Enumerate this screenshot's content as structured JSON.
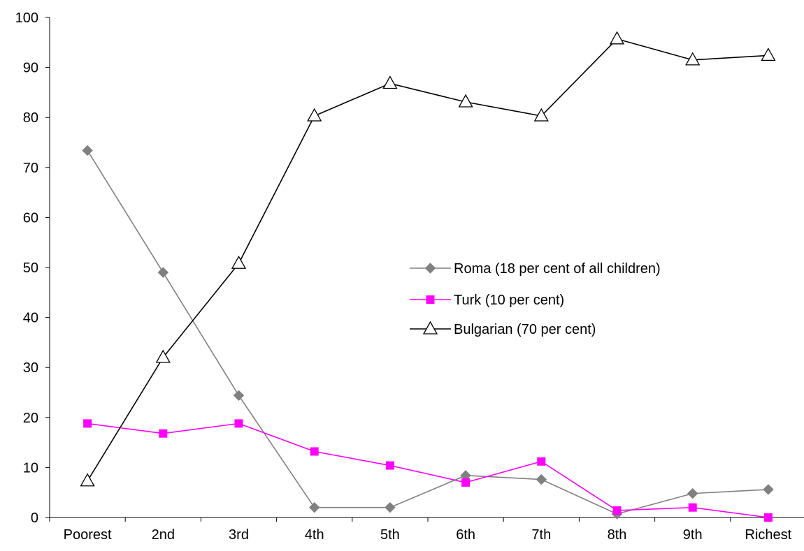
{
  "chart_data": {
    "type": "line",
    "categories": [
      "Poorest",
      "2nd",
      "3rd",
      "4th",
      "5th",
      "6th",
      "7th",
      "8th",
      "9th",
      "Richest"
    ],
    "ylim": [
      0,
      100
    ],
    "yticks": [
      0,
      10,
      20,
      30,
      40,
      50,
      60,
      70,
      80,
      90,
      100
    ],
    "grid": false,
    "legend_position": "right-center",
    "series": [
      {
        "name": "Roma (18 per cent of all children)",
        "marker": "diamond",
        "color": "#808080",
        "marker_color": "#808080",
        "values": [
          73.4,
          49.0,
          24.4,
          2.0,
          2.0,
          8.4,
          7.6,
          0.7,
          4.8,
          5.6
        ]
      },
      {
        "name": "Turk (10 per cent)",
        "marker": "square",
        "color": "#ff00ff",
        "marker_color": "#ff00ff",
        "values": [
          18.8,
          16.8,
          18.8,
          13.2,
          10.4,
          7.0,
          11.2,
          1.4,
          2.0,
          0.0
        ]
      },
      {
        "name": "Bulgarian (70 per cent)",
        "marker": "triangle-open",
        "color": "#000000",
        "marker_color": "#000000",
        "values": [
          7.3,
          32.0,
          50.8,
          80.3,
          86.8,
          83.1,
          80.3,
          95.7,
          91.5,
          92.4
        ]
      }
    ]
  }
}
